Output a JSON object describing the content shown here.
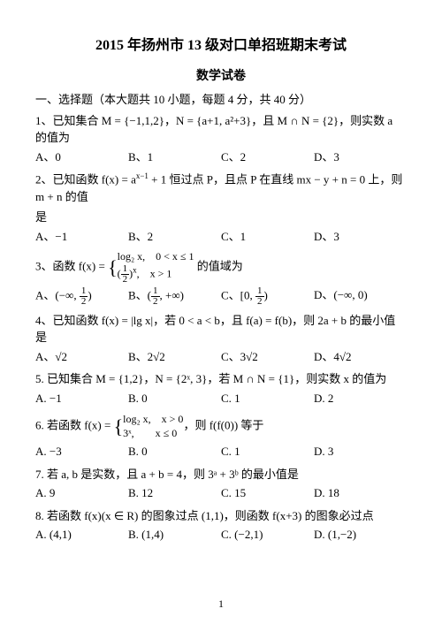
{
  "title": "2015 年扬州市 13 级对口单招班期末考试",
  "subtitle": "数学试卷",
  "section1": "一、选择题（本大题共 10 小题，每题 4 分，共 40 分）",
  "q1": {
    "stem": "1、已知集合 M = {−1,1,2}，N = {a+1, a²+3}，且 M ∩ N = {2}，则实数 a 的值为",
    "A": "A、0",
    "B": "B、1",
    "C": "C、2",
    "D": "D、3"
  },
  "q2": {
    "stem_a": "2、已知函数 f(x) = a",
    "stem_b": " + 1 恒过点 P，且点 P 在直线 mx − y + n = 0 上，则 m + n 的值",
    "stem_c": "是",
    "A": "A、−1",
    "B": "B、2",
    "C": "C、1",
    "D": "D、3"
  },
  "q3": {
    "stem_a": "3、函数 f(x) = ",
    "p1": "log₂ x,　0 < x ≤ 1",
    "p2a": "(",
    "p2b": ")",
    "p2tail": ",　x > 1",
    "stem_b": " 的值域为",
    "A_a": "A、(−∞, ",
    "A_b": ")",
    "B_a": "B、(",
    "B_b": ", +∞)",
    "C_a": "C、[0, ",
    "C_b": ")",
    "D": "D、(−∞, 0)"
  },
  "q4": {
    "stem": "4、已知函数 f(x) = |lg x|，若 0 < a < b，且 f(a) = f(b)，则 2a + b 的最小值是",
    "A": "A、√2",
    "B": "B、2√2",
    "C": "C、3√2",
    "D": "D、4√2"
  },
  "q5": {
    "stem": "5. 已知集合 M = {1,2}，N = {2ˣ, 3}，若 M ∩ N = {1}，则实数 x 的值为",
    "A": "A. −1",
    "B": "B. 0",
    "C": "C. 1",
    "D": "D. 2"
  },
  "q6": {
    "stem_a": "6. 若函数 f(x) = ",
    "p1": "log₂ x,　x > 0",
    "p2": "3ˣ,　　x ≤ 0",
    "stem_b": "，则 f(f(0)) 等于",
    "A": "A. −3",
    "B": "B. 0",
    "C": "C. 1",
    "D": "D. 3"
  },
  "q7": {
    "stem": "7. 若 a, b 是实数，且 a + b = 4，则 3ᵃ + 3ᵇ 的最小值是",
    "A": "A. 9",
    "B": "B. 12",
    "C": "C. 15",
    "D": "D. 18"
  },
  "q8": {
    "stem": "8. 若函数 f(x)(x ∈ R) 的图象过点 (1,1)，则函数 f(x+3) 的图象必过点",
    "A": "A. (4,1)",
    "B": "B. (1,4)",
    "C": "C. (−2,1)",
    "D": "D. (1,−2)"
  },
  "page": "1"
}
